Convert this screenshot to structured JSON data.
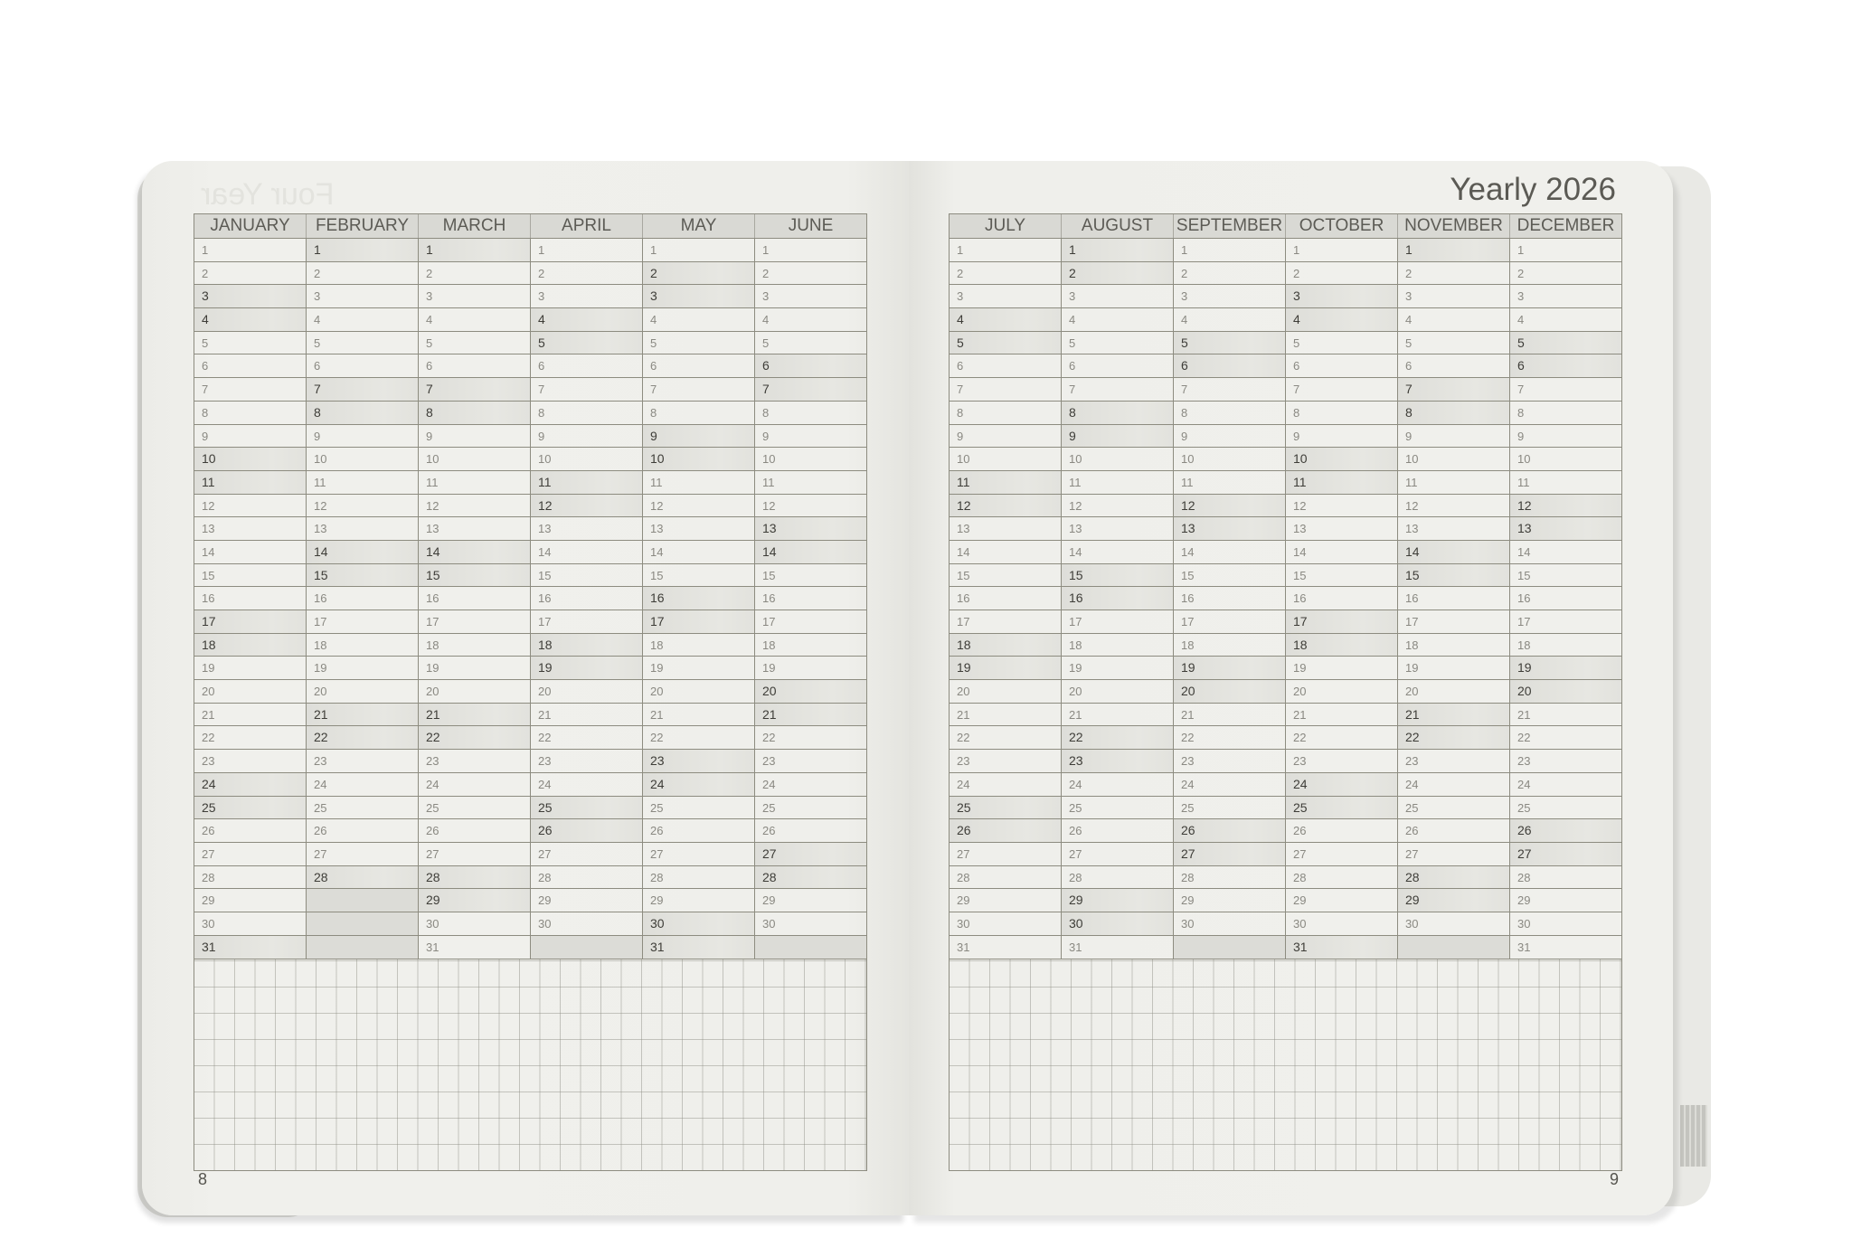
{
  "left_page": {
    "page_number": "8",
    "bleed_through_text": "Four Year",
    "months": [
      {
        "name": "JANUARY",
        "days": 31,
        "weekends": [
          3,
          4,
          10,
          11,
          17,
          18,
          24,
          25,
          31
        ]
      },
      {
        "name": "FEBRUARY",
        "days": 28,
        "weekends": [
          1,
          7,
          8,
          14,
          15,
          21,
          22,
          28
        ]
      },
      {
        "name": "MARCH",
        "days": 31,
        "weekends": [
          1,
          7,
          8,
          14,
          15,
          21,
          22,
          28,
          29
        ]
      },
      {
        "name": "APRIL",
        "days": 30,
        "weekends": [
          4,
          5,
          11,
          12,
          18,
          19,
          25,
          26
        ]
      },
      {
        "name": "MAY",
        "days": 31,
        "weekends": [
          2,
          3,
          9,
          10,
          16,
          17,
          23,
          24,
          30,
          31
        ]
      },
      {
        "name": "JUNE",
        "days": 30,
        "weekends": [
          6,
          7,
          13,
          14,
          20,
          21,
          27,
          28
        ]
      }
    ]
  },
  "right_page": {
    "title": "Yearly 2026",
    "page_number": "9",
    "months": [
      {
        "name": "JULY",
        "days": 31,
        "weekends": [
          4,
          5,
          11,
          12,
          18,
          19,
          25,
          26
        ]
      },
      {
        "name": "AUGUST",
        "days": 31,
        "weekends": [
          1,
          2,
          8,
          9,
          15,
          16,
          22,
          23,
          29,
          30
        ]
      },
      {
        "name": "SEPTEMBER",
        "days": 30,
        "weekends": [
          5,
          6,
          12,
          13,
          19,
          20,
          26,
          27
        ]
      },
      {
        "name": "OCTOBER",
        "days": 31,
        "weekends": [
          3,
          4,
          10,
          11,
          17,
          18,
          24,
          25,
          31
        ]
      },
      {
        "name": "NOVEMBER",
        "days": 30,
        "weekends": [
          1,
          7,
          8,
          14,
          15,
          21,
          22,
          28,
          29
        ]
      },
      {
        "name": "DECEMBER",
        "days": 31,
        "weekends": [
          5,
          6,
          12,
          13,
          19,
          20,
          26,
          27
        ]
      }
    ]
  },
  "colors": {
    "paper": "#efefeb",
    "rule": "#8d8c80",
    "weekend_shade": "#e0e0db",
    "text": "#5c5b55"
  }
}
